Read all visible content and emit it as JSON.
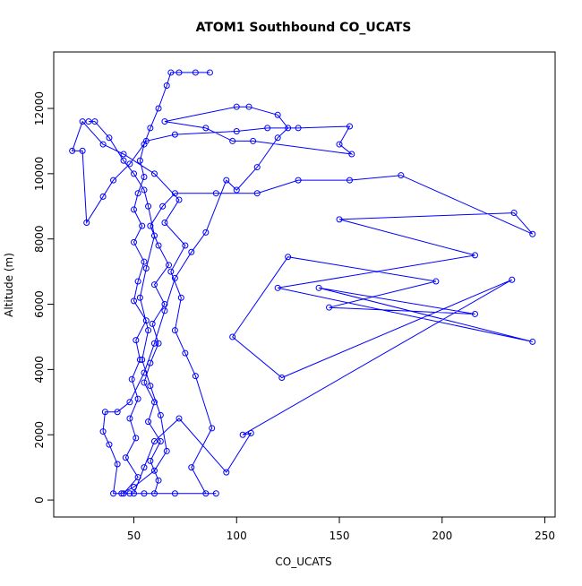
{
  "chart_data": {
    "type": "scatter",
    "title": "ATOM1 Southbound CO_UCATS",
    "x_label": "CO_UCATS",
    "y_label": "Altitude (m)",
    "color": "#0000ff",
    "connect": true,
    "x": [
      87,
      80,
      72,
      68,
      66,
      62,
      58,
      55,
      53,
      55,
      52,
      50,
      54,
      50,
      55,
      52,
      50,
      56,
      51,
      53,
      49,
      52,
      48,
      51,
      46,
      52,
      45,
      48,
      55,
      60,
      62,
      58,
      63,
      57,
      60,
      55,
      58,
      62,
      59,
      65,
      60,
      67,
      62,
      58,
      64,
      70,
      90,
      110,
      130,
      155,
      180,
      244,
      235,
      150,
      216,
      120,
      244,
      140,
      216,
      145,
      197,
      125,
      98,
      122,
      234,
      103,
      107,
      95,
      72,
      60,
      55,
      50,
      70,
      90,
      85,
      78,
      88,
      80,
      75,
      70,
      73,
      68,
      75,
      65,
      72,
      60,
      45,
      35,
      25,
      20,
      25,
      27,
      35,
      40,
      48,
      56,
      70,
      100,
      115,
      130,
      155,
      150,
      156,
      108,
      98,
      85,
      65,
      100,
      106,
      120,
      125,
      120,
      110,
      100,
      95,
      85,
      78,
      70,
      65,
      60,
      55,
      48,
      42,
      36,
      35,
      38,
      42,
      40,
      44,
      50,
      60,
      66,
      63,
      58,
      54,
      57,
      53,
      56,
      60,
      57,
      55,
      50,
      45,
      38,
      31,
      28
    ],
    "values": [
      13100,
      13100,
      13100,
      13100,
      12700,
      12000,
      11400,
      10900,
      10400,
      9900,
      9400,
      8900,
      8400,
      7900,
      7300,
      6700,
      6100,
      5500,
      4900,
      4300,
      3700,
      3100,
      2500,
      1900,
      1300,
      700,
      200,
      200,
      200,
      200,
      600,
      1200,
      1800,
      2400,
      3000,
      3600,
      4200,
      4800,
      5400,
      6000,
      6600,
      7200,
      7800,
      8400,
      9000,
      9400,
      9400,
      9400,
      9800,
      9800,
      9950,
      8150,
      8800,
      8600,
      7500,
      6500,
      4850,
      6500,
      5700,
      5900,
      6700,
      7450,
      5000,
      3750,
      6750,
      2000,
      2050,
      850,
      2500,
      1800,
      1000,
      200,
      200,
      200,
      200,
      1000,
      2200,
      3800,
      4500,
      5200,
      6200,
      7000,
      7800,
      8500,
      9200,
      10000,
      10600,
      10900,
      11600,
      10700,
      10700,
      8500,
      9300,
      9800,
      10300,
      11000,
      11200,
      11300,
      11400,
      11400,
      11450,
      10900,
      10600,
      11000,
      11000,
      11400,
      11600,
      12050,
      12050,
      11800,
      11400,
      11100,
      10200,
      9500,
      9800,
      8200,
      7600,
      6800,
      5800,
      4800,
      3900,
      3000,
      2700,
      2700,
      2100,
      1700,
      1100,
      200,
      200,
      400,
      900,
      1500,
      2600,
      3500,
      4300,
      5200,
      6200,
      7100,
      8100,
      9000,
      9500,
      10000,
      10400,
      11100,
      11600,
      11600
    ],
    "xlim": [
      11,
      255
    ],
    "ylim": [
      -520,
      13730
    ],
    "xticks": [
      50,
      100,
      150,
      200,
      250
    ],
    "yticks": [
      0,
      2000,
      4000,
      6000,
      8000,
      10000,
      12000
    ]
  }
}
